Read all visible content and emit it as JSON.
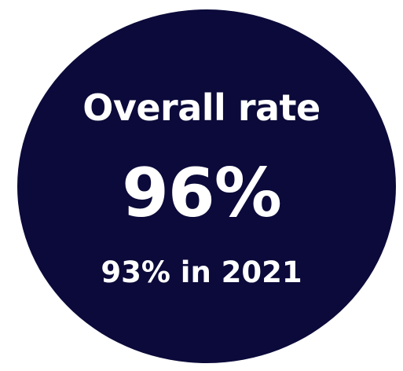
{
  "badge": {
    "label": "Overall rate",
    "value": "96%",
    "comparison": "93% in 2021",
    "background_color": "#0b0a3a",
    "text_color": "#ffffff"
  }
}
